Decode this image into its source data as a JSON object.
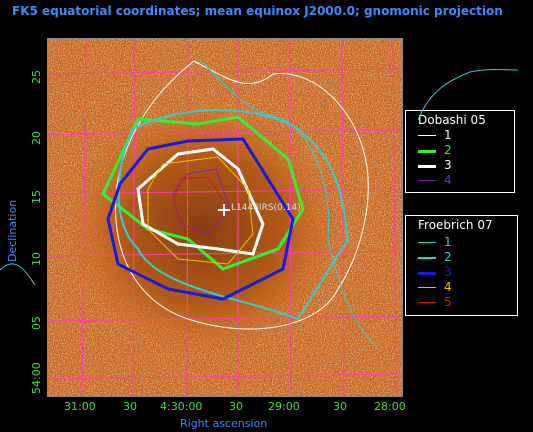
{
  "title": "FK5 equatorial coordinates; mean equinox J2000.0; gnomonic projection",
  "axes": {
    "xlabel": "Right ascension",
    "ylabel": "Declination",
    "x_ticks": [
      "31:00",
      "30",
      "4:30:00",
      "30",
      "29:00",
      "30",
      "28:00"
    ],
    "y_ticks": [
      "25",
      "20",
      "15",
      "10",
      "05",
      "54:00"
    ]
  },
  "marker_label": "L1448IRS(0.14)",
  "colors": {
    "background_image": "#c8661a",
    "grid": "#ff3fa8",
    "axis_label": "#3a8cff",
    "tick_label": "#44dd44"
  },
  "legends": [
    {
      "title": "Dobashi 05",
      "items": [
        {
          "label": "1",
          "color": "#ffffff",
          "width": 1
        },
        {
          "label": "2",
          "color": "#33ee33",
          "width": 3
        },
        {
          "label": "3",
          "color": "#ffffff",
          "width": 3
        },
        {
          "label": "4",
          "color": "#7a2ab0",
          "width": 1
        }
      ]
    },
    {
      "title": "Froebrich 07",
      "items": [
        {
          "label": "1",
          "color": "#33cccc",
          "width": 1
        },
        {
          "label": "2",
          "color": "#33cccc",
          "width": 2
        },
        {
          "label": "3",
          "color": "#1a1adc",
          "width": 3
        },
        {
          "label": "4",
          "color": "#e6c200",
          "width": 1
        },
        {
          "label": "5",
          "color": "#cc1a1a",
          "width": 1
        }
      ]
    }
  ]
}
